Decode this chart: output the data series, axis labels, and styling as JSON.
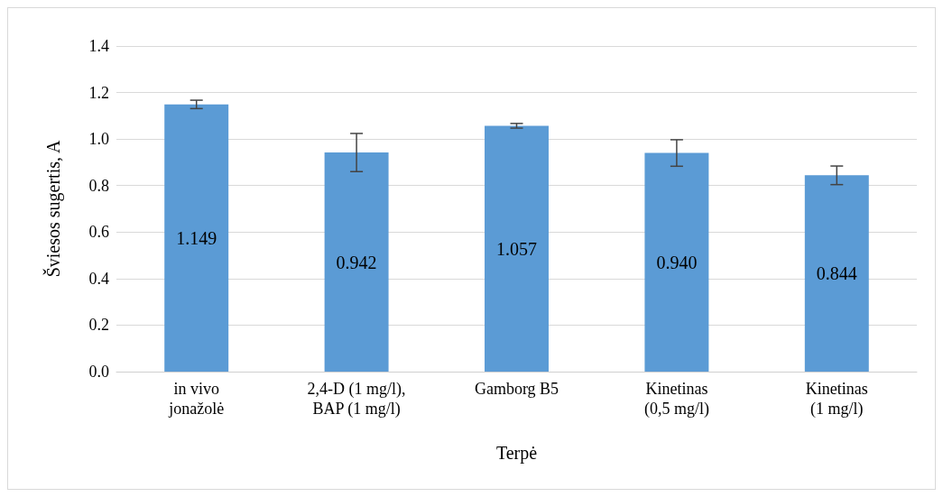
{
  "chart_data": {
    "type": "bar",
    "xlabel": "Terpė",
    "ylabel": "Šviesos sugertis, A",
    "categories": [
      "in vivo\njonažolė",
      "2,4-D (1 mg/l),\nBAP (1 mg/l)",
      "Gamborg B5",
      "Kinetinas\n(0,5 mg/l)",
      "Kinetinas\n(1 mg/l)"
    ],
    "values": [
      1.149,
      0.942,
      1.057,
      0.94,
      0.844
    ],
    "errors": [
      0.018,
      0.082,
      0.01,
      0.057,
      0.04
    ],
    "color": "#5b9bd5",
    "value_labels": [
      "1.149",
      "0.942",
      "1.057",
      "0.940",
      "0.844"
    ],
    "ylim": [
      0,
      1.4
    ],
    "yticks": [
      {
        "value": 0,
        "label": "0.0"
      },
      {
        "value": 0.2,
        "label": "0.2"
      },
      {
        "value": 0.4,
        "label": "0.4"
      },
      {
        "value": 0.6,
        "label": "0.6"
      },
      {
        "value": 0.8,
        "label": "0.8"
      },
      {
        "value": 1,
        "label": "1.0"
      },
      {
        "value": 1.2,
        "label": "1.2"
      },
      {
        "value": 1.4,
        "label": "1.4"
      }
    ],
    "grid": "y"
  }
}
